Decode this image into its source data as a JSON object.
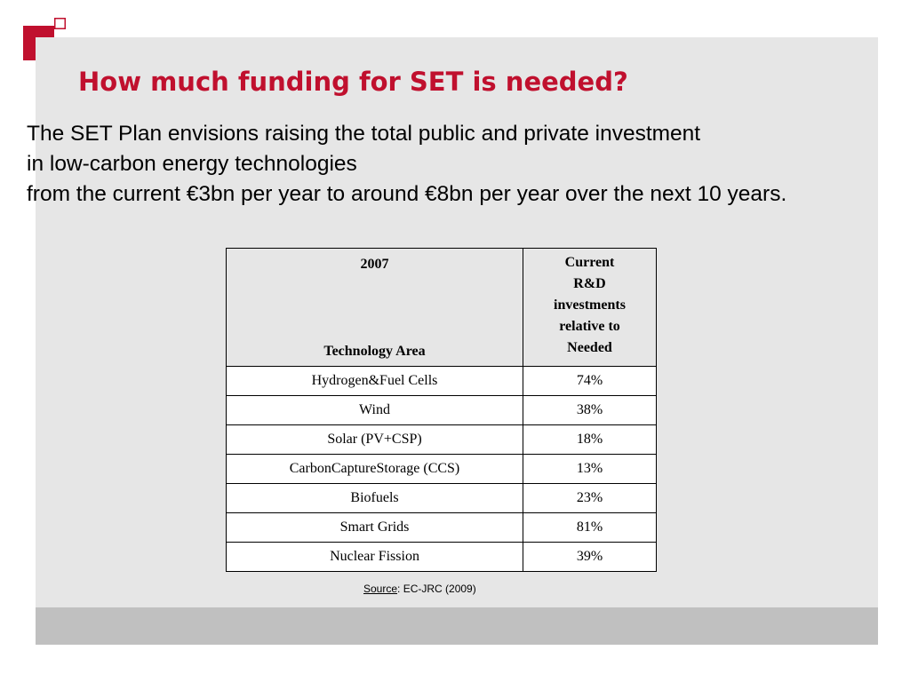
{
  "slide": {
    "title": "How much funding for SET is needed?",
    "title_color": "#c0102e",
    "logo_color": "#c0102e",
    "intro_lines": [
      "The SET Plan envisions raising the total public and private investment",
      "in low-carbon energy technologies",
      "from the current €3bn per year to around €8bn per year over the next 10 years."
    ]
  },
  "table": {
    "header": {
      "year": "2007",
      "area": "Technology Area",
      "ratio_lines": [
        "Current",
        "R&D",
        "investments",
        "relative to",
        "Needed"
      ]
    },
    "rows": [
      {
        "area": "Hydrogen&Fuel Cells",
        "ratio": "74%"
      },
      {
        "area": "Wind",
        "ratio": "38%"
      },
      {
        "area": "Solar (PV+CSP)",
        "ratio": "18%"
      },
      {
        "area": "CarbonCaptureStorage (CCS)",
        "ratio": "13%"
      },
      {
        "area": "Biofuels",
        "ratio": "23%"
      },
      {
        "area": "Smart Grids",
        "ratio": "81%"
      },
      {
        "area": "Nuclear Fission",
        "ratio": "39%"
      }
    ]
  },
  "source": {
    "label": "Source",
    "sep": ":  ",
    "text": "EC-JRC (2009)"
  }
}
